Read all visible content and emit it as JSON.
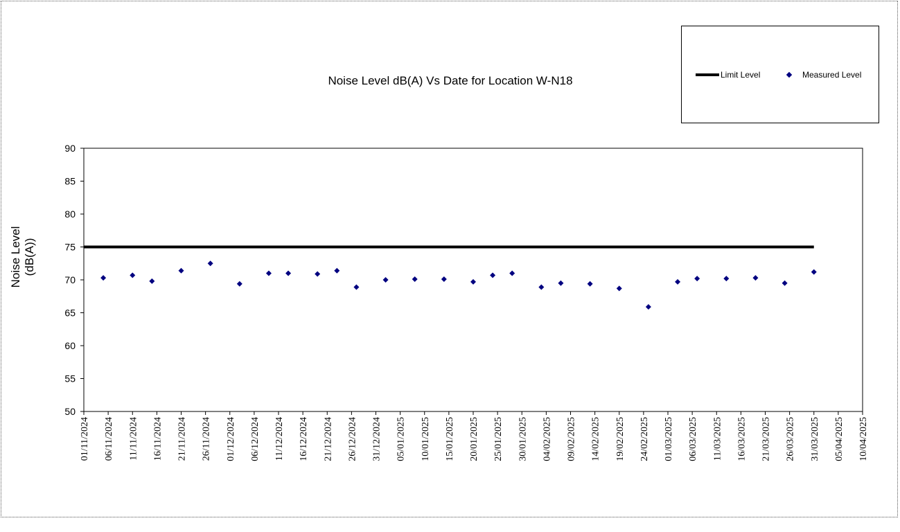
{
  "chart_data": {
    "type": "scatter",
    "title": "Noise Level dB(A) Vs Date for Location W-N18",
    "ylabel_lines": [
      "Noise Level",
      "(dB(A))"
    ],
    "xlabel": "",
    "ylim": [
      50,
      90
    ],
    "yticks": [
      50,
      55,
      60,
      65,
      70,
      75,
      80,
      85,
      90
    ],
    "xlim": [
      "01/11/2024",
      "10/04/2025"
    ],
    "xtick_labels": [
      "01/11/2024",
      "06/11/2024",
      "11/11/2024",
      "16/11/2024",
      "21/11/2024",
      "26/11/2024",
      "01/12/2024",
      "06/12/2024",
      "11/12/2024",
      "16/12/2024",
      "21/12/2024",
      "26/12/2024",
      "31/12/2024",
      "05/01/2025",
      "10/01/2025",
      "15/01/2025",
      "20/01/2025",
      "25/01/2025",
      "30/01/2025",
      "04/02/2025",
      "09/02/2025",
      "14/02/2025",
      "19/02/2025",
      "24/02/2025",
      "01/03/2025",
      "06/03/2025",
      "11/03/2025",
      "16/03/2025",
      "21/03/2025",
      "26/03/2025",
      "31/03/2025",
      "05/04/2025",
      "10/04/2025"
    ],
    "grid": false,
    "legend_position": "top-right",
    "legend": [
      "Limit Level",
      "Measured Level"
    ],
    "series": [
      {
        "name": "Limit Level",
        "type": "line",
        "color": "#000000",
        "x": [
          "01/11/2024",
          "31/03/2025"
        ],
        "y": [
          75,
          75
        ]
      },
      {
        "name": "Measured Level",
        "type": "scatter",
        "color": "#000080",
        "points": [
          {
            "x": "05/11/2024",
            "y": 70.3
          },
          {
            "x": "11/11/2024",
            "y": 70.7
          },
          {
            "x": "15/11/2024",
            "y": 69.8
          },
          {
            "x": "21/11/2024",
            "y": 71.4
          },
          {
            "x": "27/11/2024",
            "y": 72.5
          },
          {
            "x": "03/12/2024",
            "y": 69.4
          },
          {
            "x": "09/12/2024",
            "y": 71.0
          },
          {
            "x": "13/12/2024",
            "y": 71.0
          },
          {
            "x": "19/12/2024",
            "y": 70.9
          },
          {
            "x": "23/12/2024",
            "y": 71.4
          },
          {
            "x": "27/12/2024",
            "y": 68.9
          },
          {
            "x": "02/01/2025",
            "y": 70.0
          },
          {
            "x": "08/01/2025",
            "y": 70.1
          },
          {
            "x": "14/01/2025",
            "y": 70.1
          },
          {
            "x": "20/01/2025",
            "y": 69.7
          },
          {
            "x": "24/01/2025",
            "y": 70.7
          },
          {
            "x": "28/01/2025",
            "y": 71.0
          },
          {
            "x": "03/02/2025",
            "y": 68.9
          },
          {
            "x": "07/02/2025",
            "y": 69.5
          },
          {
            "x": "13/02/2025",
            "y": 69.4
          },
          {
            "x": "19/02/2025",
            "y": 68.7
          },
          {
            "x": "25/02/2025",
            "y": 65.9
          },
          {
            "x": "03/03/2025",
            "y": 69.7
          },
          {
            "x": "07/03/2025",
            "y": 70.2
          },
          {
            "x": "13/03/2025",
            "y": 70.2
          },
          {
            "x": "19/03/2025",
            "y": 70.3
          },
          {
            "x": "25/03/2025",
            "y": 69.5
          },
          {
            "x": "31/03/2025",
            "y": 71.2
          }
        ]
      }
    ]
  }
}
